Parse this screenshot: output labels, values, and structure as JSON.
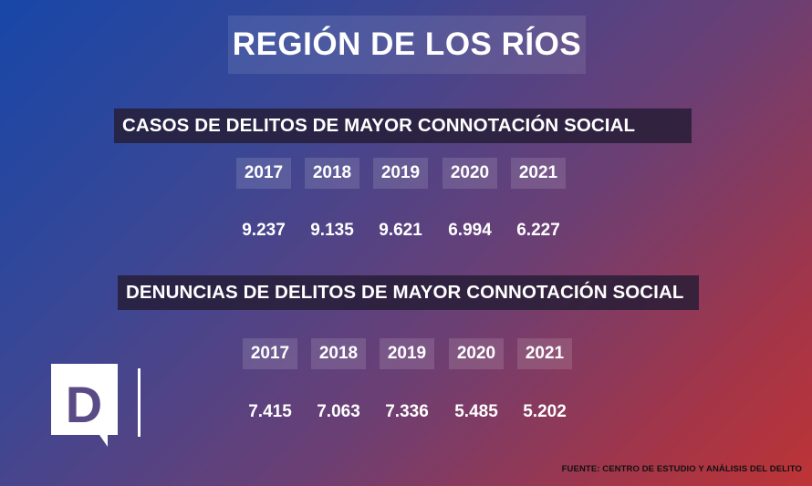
{
  "title": "REGIÓN DE LOS RÍOS",
  "sections": [
    {
      "heading": "CASOS DE DELITOS DE MAYOR CONNOTACIÓN SOCIAL",
      "years": [
        "2017",
        "2018",
        "2019",
        "2020",
        "2021"
      ],
      "values": [
        "9.237",
        "9.135",
        "9.621",
        "6.994",
        "6.227"
      ]
    },
    {
      "heading": "DENUNCIAS DE DELITOS DE MAYOR CONNOTACIÓN SOCIAL",
      "years": [
        "2017",
        "2018",
        "2019",
        "2020",
        "2021"
      ],
      "values": [
        "7.415",
        "7.063",
        "7.336",
        "5.485",
        "5.202"
      ]
    }
  ],
  "logo": {
    "letter": "D",
    "icon": "speech-bubble-d-logo-icon"
  },
  "source": "FUENTE: CENTRO DE ESTUDIO Y ANÁLISIS DEL DELITO",
  "colors": {
    "gradient_start": "#1747a8",
    "gradient_end": "#bd3436",
    "bar": "#241c34"
  }
}
